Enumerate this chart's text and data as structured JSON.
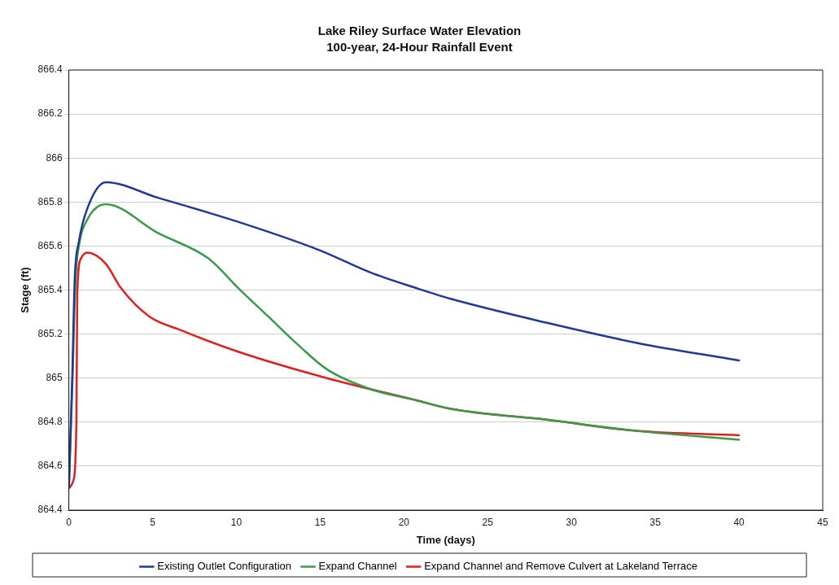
{
  "chart_data": {
    "type": "line",
    "title": "Lake Riley Surface Water Elevation",
    "subtitle": "100-year, 24-Hour Rainfall Event",
    "xlabel": "Time (days)",
    "ylabel": "Stage (ft)",
    "xlim": [
      0,
      45
    ],
    "xticks": [
      0,
      5,
      10,
      15,
      20,
      25,
      30,
      35,
      40,
      45
    ],
    "ylim": [
      864.4,
      866.4
    ],
    "yticks": [
      864.4,
      864.6,
      864.8,
      865,
      865.2,
      865.4,
      865.6,
      865.8,
      866,
      866.2,
      866.4
    ],
    "grid": "y",
    "legend": "bottom",
    "marker": "none",
    "line_style": "solid",
    "series": [
      {
        "name": "Existing Outlet Configuration",
        "color": "#1f3a93",
        "x": [
          0,
          0.2,
          0.35,
          0.6,
          1.1,
          2.2,
          5.3,
          10.1,
          15,
          18,
          20.7,
          22.8,
          28.6,
          33.9,
          40
        ],
        "values": [
          864.5,
          865.0,
          865.45,
          865.62,
          865.77,
          865.89,
          865.82,
          865.71,
          865.58,
          865.48,
          865.41,
          865.36,
          865.25,
          865.16,
          865.08
        ]
      },
      {
        "name": "Expand Channel",
        "color": "#3a9a4a",
        "x": [
          0,
          0.2,
          0.4,
          0.6,
          1.1,
          2.2,
          5.3,
          8.4,
          10.1,
          11.9,
          13.7,
          15.4,
          18,
          20.7,
          22.8,
          28.6,
          33.9,
          40
        ],
        "values": [
          864.5,
          864.95,
          865.45,
          865.6,
          865.72,
          865.79,
          865.66,
          865.54,
          865.41,
          865.28,
          865.15,
          865.04,
          864.95,
          864.9,
          864.86,
          864.81,
          864.76,
          864.72
        ]
      },
      {
        "name": "Expand Channel and Remove Culvert at Lakeland Terrace",
        "color": "#e02020",
        "x": [
          0,
          0.25,
          0.45,
          0.5,
          0.7,
          1.1,
          2.2,
          3.1,
          4.8,
          6.6,
          10.1,
          15.4,
          20.7,
          22.8,
          28.6,
          33.9,
          40
        ],
        "values": [
          864.5,
          864.53,
          864.8,
          865.38,
          865.54,
          865.57,
          865.52,
          865.41,
          865.28,
          865.22,
          865.12,
          865.0,
          864.9,
          864.86,
          864.81,
          864.76,
          864.74
        ]
      }
    ]
  }
}
